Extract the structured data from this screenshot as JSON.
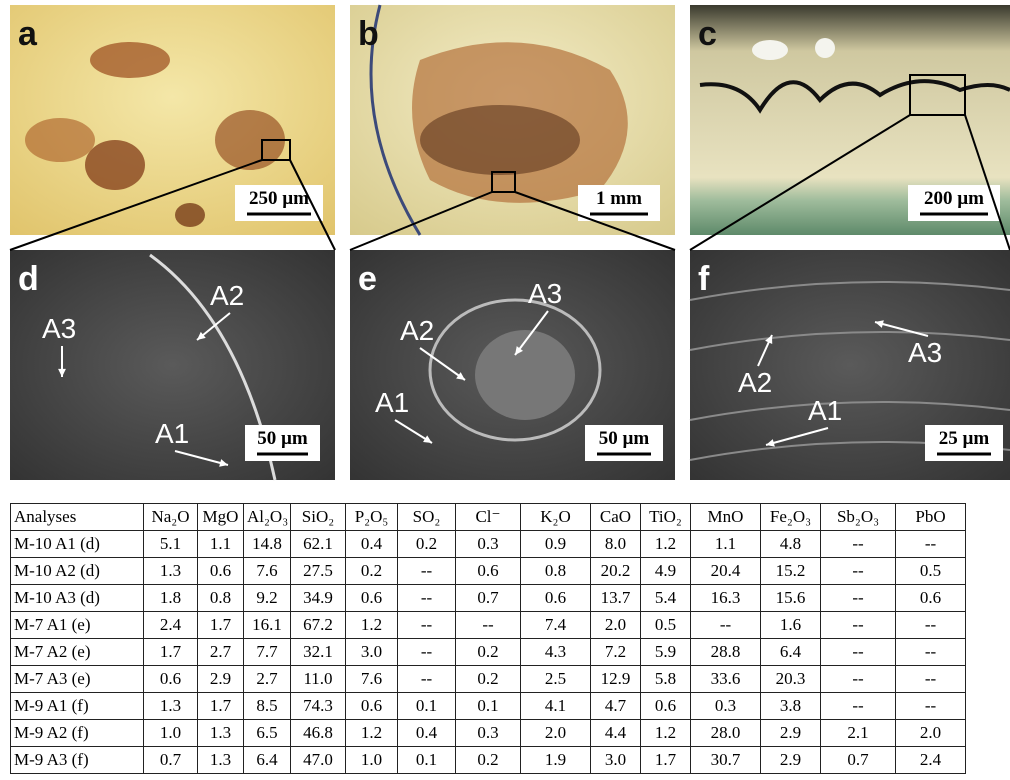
{
  "panels": [
    {
      "letter": "a",
      "scale_bar": "250 µm"
    },
    {
      "letter": "b",
      "scale_bar": "1 mm"
    },
    {
      "letter": "c",
      "scale_bar": "200 µm"
    },
    {
      "letter": "d",
      "scale_bar": "50 µm",
      "annotations": [
        "A3",
        "A2",
        "A1"
      ]
    },
    {
      "letter": "e",
      "scale_bar": "50 µm",
      "annotations": [
        "A3",
        "A2",
        "A1"
      ]
    },
    {
      "letter": "f",
      "scale_bar": "25 µm",
      "annotations": [
        "A3",
        "A2",
        "A1"
      ]
    }
  ],
  "table": {
    "header": [
      "Analyses",
      "Na₂O",
      "MgO",
      "Al₂O₃",
      "SiO₂",
      "P₂O₅",
      "SO₂",
      "Cl⁻",
      "K₂O",
      "CaO",
      "TiO₂",
      "MnO",
      "Fe₂O₃",
      "Sb₂O₃",
      "PbO"
    ],
    "rows": [
      [
        "M-10 A1 (d)",
        "5.1",
        "1.1",
        "14.8",
        "62.1",
        "0.4",
        "0.2",
        "0.3",
        "0.9",
        "8.0",
        "1.2",
        "1.1",
        "4.8",
        "--",
        "--"
      ],
      [
        "M-10 A2 (d)",
        "1.3",
        "0.6",
        "7.6",
        "27.5",
        "0.2",
        "--",
        "0.6",
        "0.8",
        "20.2",
        "4.9",
        "20.4",
        "15.2",
        "--",
        "0.5"
      ],
      [
        "M-10 A3 (d)",
        "1.8",
        "0.8",
        "9.2",
        "34.9",
        "0.6",
        "--",
        "0.7",
        "0.6",
        "13.7",
        "5.4",
        "16.3",
        "15.6",
        "--",
        "0.6"
      ],
      [
        "M-7 A1 (e)",
        "2.4",
        "1.7",
        "16.1",
        "67.2",
        "1.2",
        "--",
        "--",
        "7.4",
        "2.0",
        "0.5",
        "--",
        "1.6",
        "--",
        "--"
      ],
      [
        "M-7 A2 (e)",
        "1.7",
        "2.7",
        "7.7",
        "32.1",
        "3.0",
        "--",
        "0.2",
        "4.3",
        "7.2",
        "5.9",
        "28.8",
        "6.4",
        "--",
        "--"
      ],
      [
        "M-7 A3 (e)",
        "0.6",
        "2.9",
        "2.7",
        "11.0",
        "7.6",
        "--",
        "0.2",
        "2.5",
        "12.9",
        "5.8",
        "33.6",
        "20.3",
        "--",
        "--"
      ],
      [
        "M-9 A1 (f)",
        "1.3",
        "1.7",
        "8.5",
        "74.3",
        "0.6",
        "0.1",
        "0.1",
        "4.1",
        "4.7",
        "0.6",
        "0.3",
        "3.8",
        "--",
        "--"
      ],
      [
        "M-9 A2 (f)",
        "1.0",
        "1.3",
        "6.5",
        "46.8",
        "1.2",
        "0.4",
        "0.3",
        "2.0",
        "4.4",
        "1.2",
        "28.0",
        "2.9",
        "2.1",
        "2.0"
      ],
      [
        "M-9 A3 (f)",
        "0.7",
        "1.3",
        "6.4",
        "47.0",
        "1.0",
        "0.1",
        "0.2",
        "1.9",
        "3.0",
        "1.7",
        "30.7",
        "2.9",
        "0.7",
        "2.4"
      ]
    ]
  }
}
